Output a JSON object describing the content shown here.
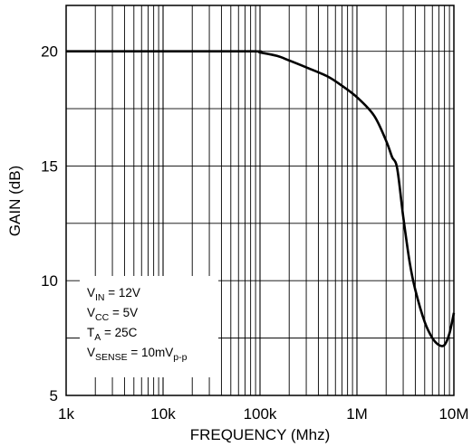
{
  "chart_data": {
    "type": "line",
    "xscale": "log",
    "xlim": [
      1000,
      10000000
    ],
    "ylim": [
      5,
      22
    ],
    "xlabel": "FREQUENCY (Mhz)",
    "ylabel": "GAIN (dB)",
    "grid": true,
    "xticks": [
      {
        "value": 1000,
        "label": "1k"
      },
      {
        "value": 10000,
        "label": "10k"
      },
      {
        "value": 100000,
        "label": "100k"
      },
      {
        "value": 1000000,
        "label": "1M"
      },
      {
        "value": 10000000,
        "label": "10M"
      }
    ],
    "yticks": [
      {
        "value": 5,
        "label": "5"
      },
      {
        "value": 10,
        "label": "10"
      },
      {
        "value": 15,
        "label": "15"
      },
      {
        "value": 20,
        "label": "20"
      }
    ],
    "series": [
      {
        "x": [
          1000,
          10000,
          85000,
          100000,
          150000,
          200000,
          300000,
          500000,
          700000,
          1000000,
          1500000,
          2000000,
          2300000,
          2600000,
          3000000,
          3500000,
          4000000,
          5000000,
          6000000,
          7000000,
          8000000,
          9000000,
          10000000
        ],
        "y": [
          20.0,
          20.0,
          20.0,
          19.95,
          19.8,
          19.6,
          19.3,
          18.9,
          18.5,
          18.0,
          17.2,
          16.1,
          15.4,
          14.9,
          12.8,
          10.8,
          9.6,
          8.2,
          7.5,
          7.2,
          7.2,
          7.7,
          8.6
        ]
      }
    ],
    "annotation": {
      "lines": [
        {
          "main": "V",
          "sub": "IN",
          "rest": " = 12V",
          "sub2": ""
        },
        {
          "main": "V",
          "sub": "CC",
          "rest": " = 5V",
          "sub2": ""
        },
        {
          "main": "T",
          "sub": "A",
          "rest": " = 25C",
          "sub2": ""
        },
        {
          "main": "V",
          "sub": "SENSE",
          "rest": " = 10mV",
          "sub2": "p-p"
        }
      ]
    }
  }
}
